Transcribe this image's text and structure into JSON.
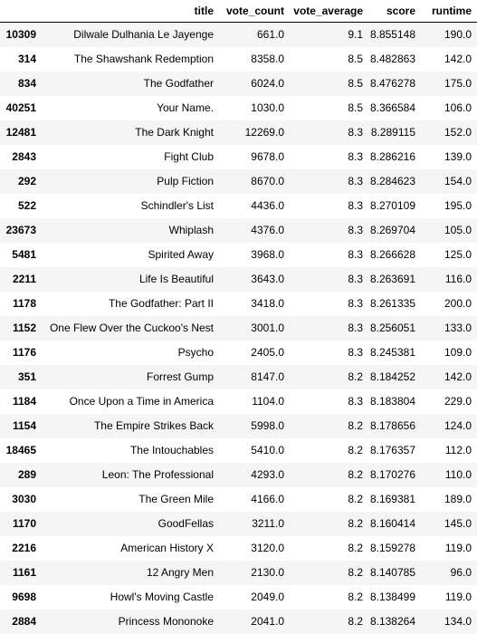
{
  "table": {
    "columns": [
      "",
      "title",
      "vote_count",
      "vote_average",
      "score",
      "runtime"
    ],
    "rows": [
      {
        "index": "10309",
        "title": "Dilwale Dulhania Le Jayenge",
        "vote_count": "661.0",
        "vote_average": "9.1",
        "score": "8.855148",
        "runtime": "190.0"
      },
      {
        "index": "314",
        "title": "The Shawshank Redemption",
        "vote_count": "8358.0",
        "vote_average": "8.5",
        "score": "8.482863",
        "runtime": "142.0"
      },
      {
        "index": "834",
        "title": "The Godfather",
        "vote_count": "6024.0",
        "vote_average": "8.5",
        "score": "8.476278",
        "runtime": "175.0"
      },
      {
        "index": "40251",
        "title": "Your Name.",
        "vote_count": "1030.0",
        "vote_average": "8.5",
        "score": "8.366584",
        "runtime": "106.0"
      },
      {
        "index": "12481",
        "title": "The Dark Knight",
        "vote_count": "12269.0",
        "vote_average": "8.3",
        "score": "8.289115",
        "runtime": "152.0"
      },
      {
        "index": "2843",
        "title": "Fight Club",
        "vote_count": "9678.0",
        "vote_average": "8.3",
        "score": "8.286216",
        "runtime": "139.0"
      },
      {
        "index": "292",
        "title": "Pulp Fiction",
        "vote_count": "8670.0",
        "vote_average": "8.3",
        "score": "8.284623",
        "runtime": "154.0"
      },
      {
        "index": "522",
        "title": "Schindler's List",
        "vote_count": "4436.0",
        "vote_average": "8.3",
        "score": "8.270109",
        "runtime": "195.0"
      },
      {
        "index": "23673",
        "title": "Whiplash",
        "vote_count": "4376.0",
        "vote_average": "8.3",
        "score": "8.269704",
        "runtime": "105.0"
      },
      {
        "index": "5481",
        "title": "Spirited Away",
        "vote_count": "3968.0",
        "vote_average": "8.3",
        "score": "8.266628",
        "runtime": "125.0"
      },
      {
        "index": "2211",
        "title": "Life Is Beautiful",
        "vote_count": "3643.0",
        "vote_average": "8.3",
        "score": "8.263691",
        "runtime": "116.0"
      },
      {
        "index": "1178",
        "title": "The Godfather: Part II",
        "vote_count": "3418.0",
        "vote_average": "8.3",
        "score": "8.261335",
        "runtime": "200.0"
      },
      {
        "index": "1152",
        "title": "One Flew Over the Cuckoo's Nest",
        "vote_count": "3001.0",
        "vote_average": "8.3",
        "score": "8.256051",
        "runtime": "133.0"
      },
      {
        "index": "1176",
        "title": "Psycho",
        "vote_count": "2405.0",
        "vote_average": "8.3",
        "score": "8.245381",
        "runtime": "109.0"
      },
      {
        "index": "351",
        "title": "Forrest Gump",
        "vote_count": "8147.0",
        "vote_average": "8.2",
        "score": "8.184252",
        "runtime": "142.0"
      },
      {
        "index": "1184",
        "title": "Once Upon a Time in America",
        "vote_count": "1104.0",
        "vote_average": "8.3",
        "score": "8.183804",
        "runtime": "229.0"
      },
      {
        "index": "1154",
        "title": "The Empire Strikes Back",
        "vote_count": "5998.0",
        "vote_average": "8.2",
        "score": "8.178656",
        "runtime": "124.0"
      },
      {
        "index": "18465",
        "title": "The Intouchables",
        "vote_count": "5410.0",
        "vote_average": "8.2",
        "score": "8.176357",
        "runtime": "112.0"
      },
      {
        "index": "289",
        "title": "Leon: The Professional",
        "vote_count": "4293.0",
        "vote_average": "8.2",
        "score": "8.170276",
        "runtime": "110.0"
      },
      {
        "index": "3030",
        "title": "The Green Mile",
        "vote_count": "4166.0",
        "vote_average": "8.2",
        "score": "8.169381",
        "runtime": "189.0"
      },
      {
        "index": "1170",
        "title": "GoodFellas",
        "vote_count": "3211.0",
        "vote_average": "8.2",
        "score": "8.160414",
        "runtime": "145.0"
      },
      {
        "index": "2216",
        "title": "American History X",
        "vote_count": "3120.0",
        "vote_average": "8.2",
        "score": "8.159278",
        "runtime": "119.0"
      },
      {
        "index": "1161",
        "title": "12 Angry Men",
        "vote_count": "2130.0",
        "vote_average": "8.2",
        "score": "8.140785",
        "runtime": "96.0"
      },
      {
        "index": "9698",
        "title": "Howl's Moving Castle",
        "vote_count": "2049.0",
        "vote_average": "8.2",
        "score": "8.138499",
        "runtime": "119.0"
      },
      {
        "index": "2884",
        "title": "Princess Mononoke",
        "vote_count": "2041.0",
        "vote_average": "8.2",
        "score": "8.138264",
        "runtime": "134.0"
      }
    ]
  }
}
